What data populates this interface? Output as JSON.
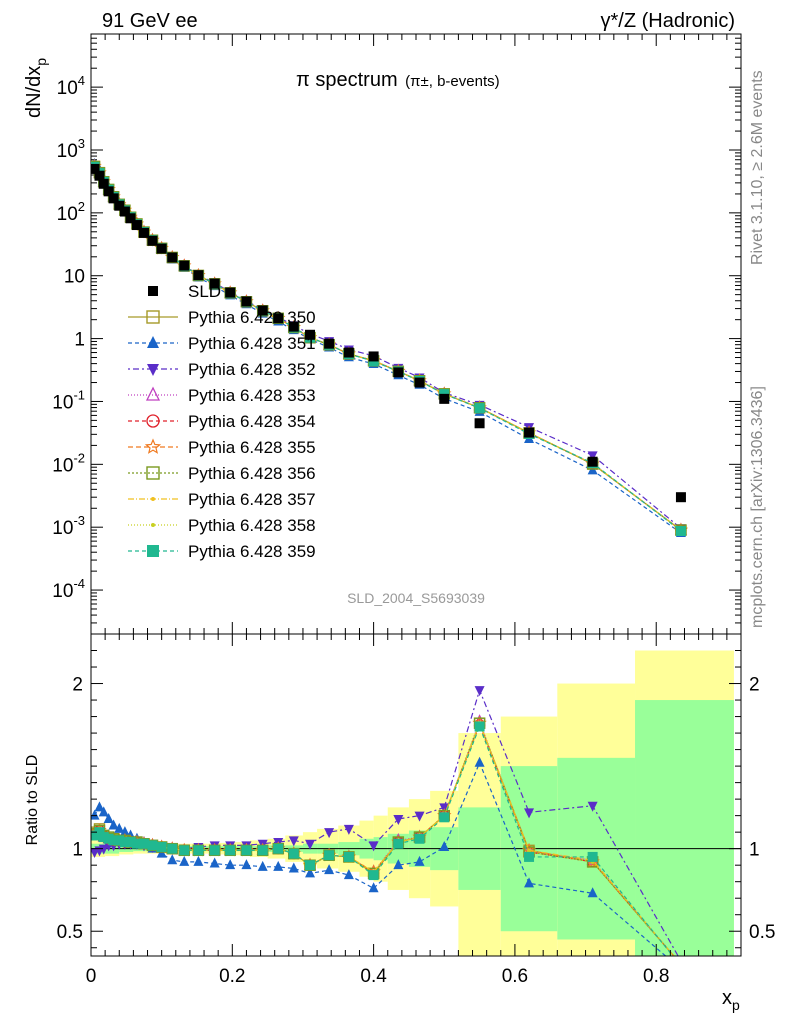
{
  "header": {
    "left": "91 GeV ee",
    "right": "γ*/Z (Hadronic)"
  },
  "side_labels": {
    "rivet": "Rivet 3.1.10, ≥ 2.6M events",
    "mcplots": "mcplots.cern.ch [arXiv:1306.3436]"
  },
  "analysis_id": "SLD_2004_S5693039",
  "chart_data": [
    {
      "panel": "main",
      "type": "scatter",
      "title": "π spectrum",
      "title_sub": "(π±, b-events)",
      "ylabel": "dN/dxp",
      "yscale": "log",
      "ylim": [
        2e-05,
        70000
      ],
      "xlim": [
        0,
        0.92
      ],
      "ytick_labels": [
        "10^-4",
        "10^-3",
        "10^-2",
        "10^-1",
        "1",
        "10",
        "10^2",
        "10^3",
        "10^4"
      ],
      "legend_position": "left",
      "reference": {
        "name": "SLD",
        "color": "#000000",
        "x": [
          0.005,
          0.012,
          0.018,
          0.025,
          0.032,
          0.04,
          0.048,
          0.056,
          0.065,
          0.075,
          0.087,
          0.1,
          0.115,
          0.132,
          0.152,
          0.175,
          0.197,
          0.22,
          0.243,
          0.265,
          0.287,
          0.31,
          0.337,
          0.365,
          0.4,
          0.435,
          0.465,
          0.5,
          0.55,
          0.62,
          0.71,
          0.835
        ],
        "y": [
          500,
          390,
          290,
          220,
          170,
          130,
          105,
          82,
          64,
          48,
          36,
          27,
          19.5,
          14.5,
          10.2,
          7.5,
          5.4,
          3.9,
          2.8,
          2.1,
          1.55,
          1.15,
          0.83,
          0.6,
          0.52,
          0.29,
          0.2,
          0.11,
          0.045,
          0.032,
          0.011,
          0.003
        ]
      },
      "series": [
        {
          "name": "Pythia 6.428 350",
          "color": "#a69a29",
          "marker": "square-open",
          "dash": "none"
        },
        {
          "name": "Pythia 6.428 351",
          "color": "#1a64c8",
          "marker": "triangle-up",
          "dash": "4,3"
        },
        {
          "name": "Pythia 6.428 352",
          "color": "#5a2dc8",
          "marker": "triangle-down",
          "dash": "2,3,6,3"
        },
        {
          "name": "Pythia 6.428 353",
          "color": "#c040c0",
          "marker": "triangle-open",
          "dash": "1,2"
        },
        {
          "name": "Pythia 6.428 354",
          "color": "#e0202a",
          "marker": "circle-open",
          "dash": "4,3"
        },
        {
          "name": "Pythia 6.428 355",
          "color": "#f07a20",
          "marker": "star-open",
          "dash": "5,3"
        },
        {
          "name": "Pythia 6.428 356",
          "color": "#7a9a20",
          "marker": "square-open",
          "dash": "2,2"
        },
        {
          "name": "Pythia 6.428 357",
          "color": "#f0c020",
          "marker": "dot",
          "dash": "6,2,1,2"
        },
        {
          "name": "Pythia 6.428 358",
          "color": "#c8d020",
          "marker": "dot",
          "dash": "1,2"
        },
        {
          "name": "Pythia 6.428 359",
          "color": "#20b890",
          "marker": "square",
          "dash": "4,3"
        }
      ]
    },
    {
      "panel": "ratio",
      "type": "line",
      "ylabel": "Ratio to SLD",
      "xlabel": "xp",
      "xlim": [
        0,
        0.92
      ],
      "ylim": [
        0.35,
        2.3
      ],
      "xtick_labels": [
        "0",
        "0.2",
        "0.4",
        "0.6",
        "0.8"
      ],
      "ytick_labels": [
        "0.5",
        "1",
        "2"
      ],
      "band_edges": [
        0.0,
        0.02,
        0.04,
        0.06,
        0.08,
        0.1,
        0.125,
        0.15,
        0.175,
        0.2,
        0.225,
        0.25,
        0.275,
        0.3,
        0.32,
        0.35,
        0.38,
        0.4,
        0.42,
        0.45,
        0.48,
        0.52,
        0.58,
        0.66,
        0.77,
        0.91
      ],
      "band_green": [
        0.03,
        0.03,
        0.02,
        0.015,
        0.015,
        0.015,
        0.015,
        0.015,
        0.015,
        0.015,
        0.015,
        0.02,
        0.02,
        0.03,
        0.03,
        0.04,
        0.06,
        0.07,
        0.09,
        0.11,
        0.13,
        0.25,
        0.5,
        0.55,
        0.9
      ],
      "band_yellow": [
        0.05,
        0.045,
        0.035,
        0.03,
        0.03,
        0.03,
        0.03,
        0.03,
        0.035,
        0.04,
        0.05,
        0.06,
        0.08,
        0.1,
        0.12,
        0.14,
        0.17,
        0.2,
        0.25,
        0.3,
        0.35,
        0.7,
        0.8,
        1.0,
        1.2
      ],
      "x": [
        0.005,
        0.012,
        0.018,
        0.025,
        0.032,
        0.04,
        0.048,
        0.056,
        0.065,
        0.075,
        0.087,
        0.1,
        0.115,
        0.132,
        0.152,
        0.175,
        0.197,
        0.22,
        0.243,
        0.265,
        0.287,
        0.31,
        0.337,
        0.365,
        0.4,
        0.435,
        0.465,
        0.5,
        0.55,
        0.62,
        0.71,
        0.835
      ],
      "series_values": [
        {
          "name": "Pythia 6.428 350",
          "values": [
            1.1,
            1.12,
            1.08,
            1.07,
            1.06,
            1.05,
            1.05,
            1.04,
            1.04,
            1.03,
            1.02,
            1.01,
            1.0,
            0.99,
            0.99,
            0.99,
            0.99,
            0.99,
            0.99,
            1.0,
            0.97,
            0.9,
            0.96,
            0.95,
            0.85,
            1.04,
            1.07,
            1.2,
            1.76,
            0.99,
            0.92,
            0.3
          ]
        },
        {
          "name": "Pythia 6.428 351",
          "values": [
            1.2,
            1.25,
            1.22,
            1.18,
            1.14,
            1.12,
            1.1,
            1.08,
            1.06,
            1.04,
            1.0,
            0.97,
            0.93,
            0.92,
            0.92,
            0.91,
            0.9,
            0.9,
            0.89,
            0.89,
            0.88,
            0.85,
            0.87,
            0.84,
            0.76,
            0.9,
            0.92,
            1.01,
            1.52,
            0.79,
            0.73,
            0.27
          ]
        },
        {
          "name": "Pythia 6.428 352",
          "values": [
            0.98,
            0.99,
            1.0,
            1.02,
            1.02,
            1.03,
            1.03,
            1.03,
            1.03,
            1.02,
            1.01,
            1.01,
            1.0,
            1.0,
            1.01,
            1.02,
            1.02,
            1.02,
            1.03,
            1.04,
            1.05,
            1.03,
            1.1,
            1.12,
            1.02,
            1.18,
            1.2,
            1.25,
            1.96,
            1.22,
            1.26,
            0.32
          ]
        },
        {
          "name": "Pythia 6.428 353",
          "values": [
            1.08,
            1.1,
            1.07,
            1.06,
            1.05,
            1.05,
            1.04,
            1.04,
            1.04,
            1.03,
            1.02,
            1.01,
            1.0,
            0.99,
            0.99,
            0.99,
            0.99,
            0.99,
            0.99,
            1.0,
            0.97,
            0.9,
            0.96,
            0.95,
            0.86,
            1.05,
            1.07,
            1.2,
            1.77,
            0.98,
            0.93,
            0.3
          ]
        },
        {
          "name": "Pythia 6.428 354",
          "values": [
            1.09,
            1.11,
            1.08,
            1.06,
            1.05,
            1.05,
            1.04,
            1.04,
            1.04,
            1.03,
            1.02,
            1.01,
            1.0,
            0.99,
            0.99,
            0.99,
            0.99,
            0.99,
            0.99,
            1.0,
            0.97,
            0.9,
            0.96,
            0.95,
            0.85,
            1.04,
            1.07,
            1.2,
            1.75,
            0.98,
            0.92,
            0.3
          ]
        },
        {
          "name": "Pythia 6.428 355",
          "values": [
            1.1,
            1.11,
            1.08,
            1.07,
            1.06,
            1.05,
            1.05,
            1.04,
            1.04,
            1.03,
            1.02,
            1.01,
            1.0,
            0.99,
            0.99,
            0.99,
            0.99,
            0.99,
            0.99,
            1.0,
            0.97,
            0.9,
            0.96,
            0.95,
            0.86,
            1.04,
            1.07,
            1.2,
            1.76,
            0.99,
            0.92,
            0.3
          ]
        },
        {
          "name": "Pythia 6.428 356",
          "values": [
            1.09,
            1.11,
            1.08,
            1.07,
            1.06,
            1.05,
            1.05,
            1.04,
            1.04,
            1.03,
            1.02,
            1.01,
            1.0,
            0.99,
            0.99,
            0.99,
            0.99,
            0.99,
            0.99,
            1.0,
            0.97,
            0.9,
            0.96,
            0.95,
            0.85,
            1.04,
            1.07,
            1.2,
            1.76,
            0.98,
            0.92,
            0.3
          ]
        },
        {
          "name": "Pythia 6.428 357",
          "values": [
            1.1,
            1.12,
            1.08,
            1.07,
            1.06,
            1.05,
            1.05,
            1.04,
            1.04,
            1.03,
            1.02,
            1.01,
            1.0,
            0.99,
            0.99,
            0.99,
            0.99,
            0.99,
            0.99,
            1.0,
            0.97,
            0.9,
            0.96,
            0.95,
            0.86,
            1.04,
            1.07,
            1.2,
            1.76,
            0.99,
            0.93,
            0.3
          ]
        },
        {
          "name": "Pythia 6.428 358",
          "values": [
            1.09,
            1.11,
            1.08,
            1.07,
            1.06,
            1.05,
            1.05,
            1.04,
            1.04,
            1.03,
            1.02,
            1.01,
            1.0,
            0.99,
            0.99,
            0.99,
            0.99,
            0.99,
            0.99,
            1.0,
            0.97,
            0.9,
            0.96,
            0.95,
            0.85,
            1.04,
            1.07,
            1.2,
            1.76,
            0.98,
            0.92,
            0.3
          ]
        },
        {
          "name": "Pythia 6.428 359",
          "values": [
            1.08,
            1.1,
            1.07,
            1.06,
            1.05,
            1.05,
            1.04,
            1.04,
            1.03,
            1.03,
            1.02,
            1.01,
            1.0,
            0.99,
            0.99,
            0.99,
            0.99,
            0.99,
            0.99,
            1.0,
            0.97,
            0.9,
            0.96,
            0.95,
            0.84,
            1.03,
            1.06,
            1.19,
            1.74,
            0.95,
            0.95,
            0.29
          ]
        }
      ]
    }
  ]
}
